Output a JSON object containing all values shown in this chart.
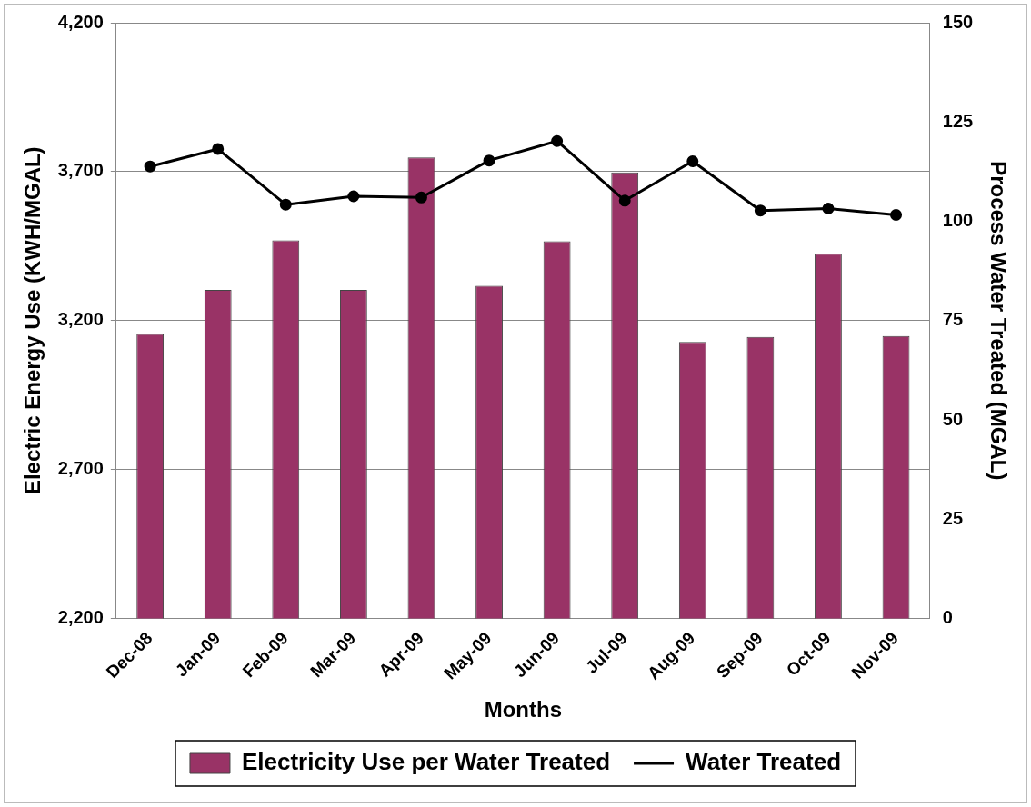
{
  "chart_data": {
    "type": "bar",
    "xlabel": "Months",
    "ylabel": "Electric Energy Use (KWH/MGAL)",
    "y2label": "Process Water Treated (MGAL)",
    "categories": [
      "Dec-08",
      "Jan-09",
      "Feb-09",
      "Mar-09",
      "Apr-09",
      "May-09",
      "Jun-09",
      "Jul-09",
      "Aug-09",
      "Sep-09",
      "Oct-09",
      "Nov-09"
    ],
    "series": [
      {
        "name": "Electricity Use per Water Treated",
        "color": "#993366",
        "values": [
          3155,
          3303,
          3469,
          3303,
          3748,
          3317,
          3466,
          3697,
          3128,
          3145,
          3424,
          3148
        ]
      },
      {
        "name": "Water Treated",
        "type": "line",
        "axis": "y2",
        "color": "#000000",
        "marker": "circle",
        "line_style": "solid",
        "values": [
          113.8,
          118.2,
          104.2,
          106.3,
          106.0,
          115.3,
          120.2,
          105.2,
          115.1,
          102.7,
          103.2,
          101.6
        ]
      }
    ],
    "ylim": [
      2200,
      4200
    ],
    "yticks": [
      {
        "value": 2200,
        "label": "2,200"
      },
      {
        "value": 2700,
        "label": "2,700"
      },
      {
        "value": 3200,
        "label": "3,200"
      },
      {
        "value": 3700,
        "label": "3,700"
      },
      {
        "value": 4200,
        "label": "4,200"
      }
    ],
    "y2lim": [
      0,
      150
    ],
    "y2ticks": [
      0,
      25,
      50,
      75,
      100,
      125,
      150
    ],
    "grid": "y",
    "legend": "bottom"
  }
}
